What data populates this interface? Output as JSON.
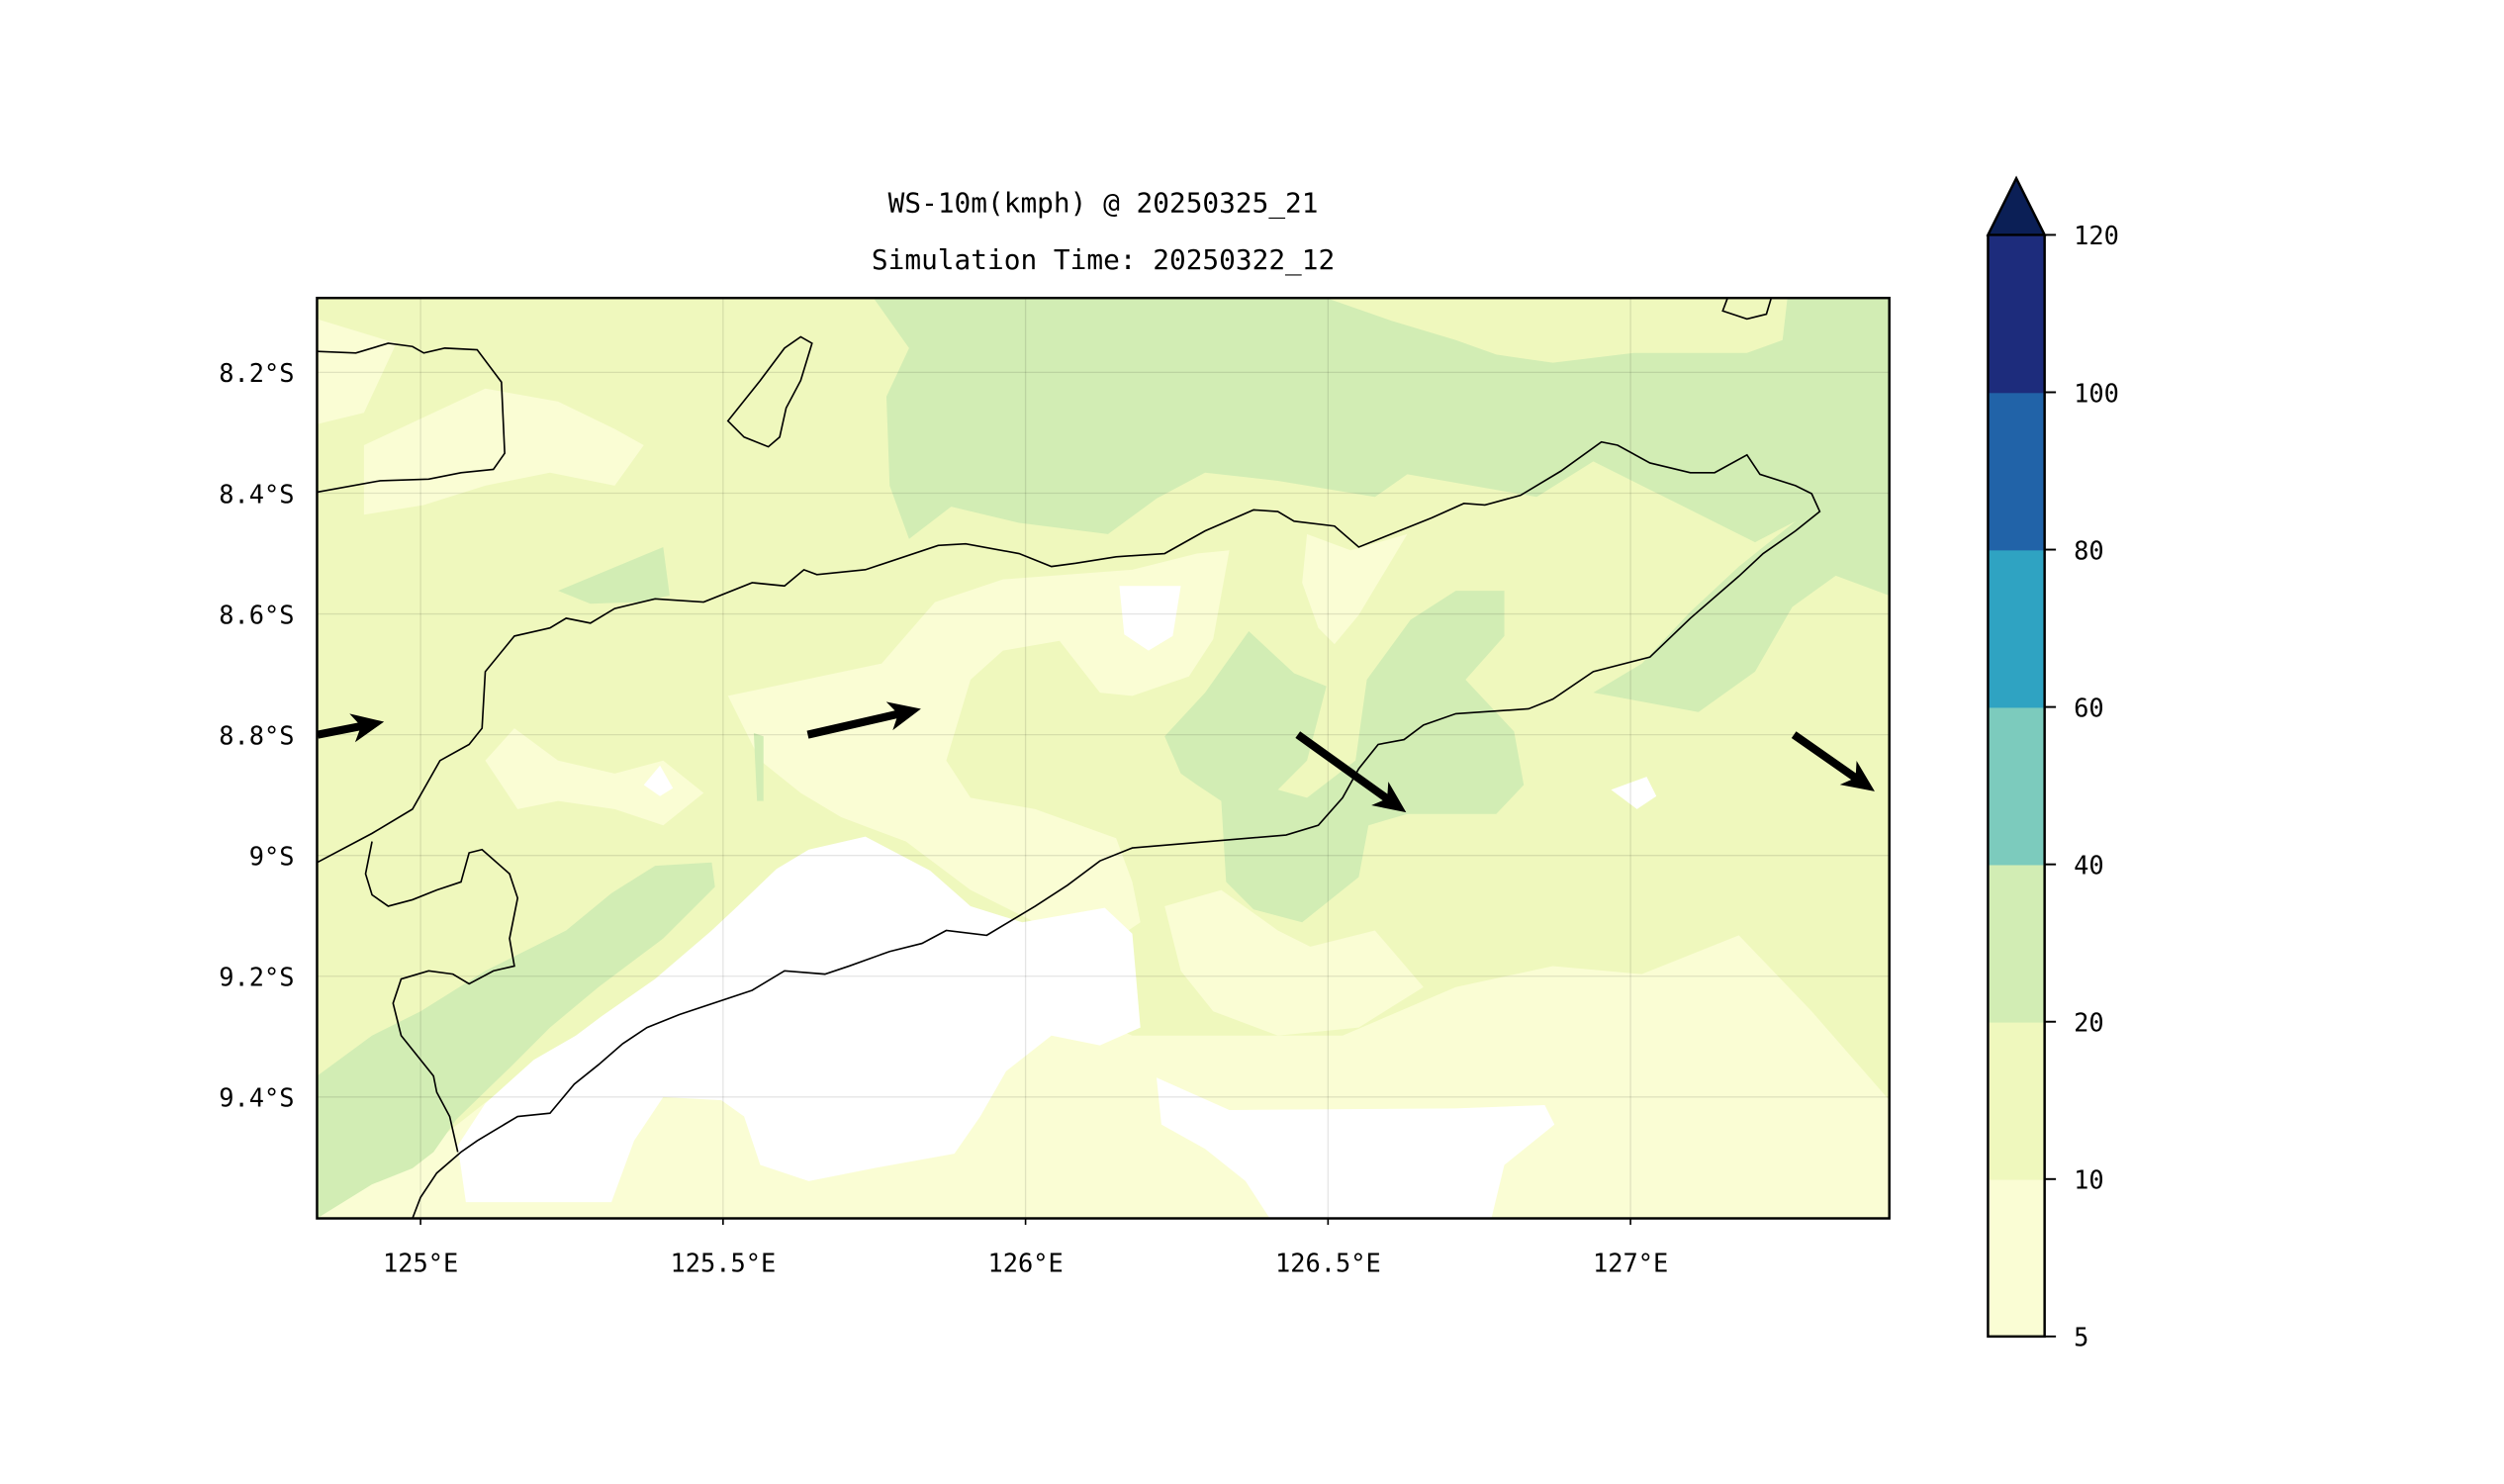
{
  "chart_data": {
    "type": "heatmap",
    "subtype": "filled-contour map with wind vectors",
    "title": "WS-10m(kmph) @ 20250325_21",
    "subtitle": "Simulation Time: 20250322_12",
    "xlabel": "",
    "ylabel": "",
    "xlim": [
      124.83,
      127.43
    ],
    "ylim_south_deg": [
      8.08,
      9.6
    ],
    "x_ticks": [
      {
        "value": 125.0,
        "label": "125°E"
      },
      {
        "value": 125.5,
        "label": "125.5°E"
      },
      {
        "value": 126.0,
        "label": "126°E"
      },
      {
        "value": 126.5,
        "label": "126.5°E"
      },
      {
        "value": 127.0,
        "label": "127°E"
      }
    ],
    "y_ticks": [
      {
        "value": 8.2,
        "label": "8.2°S"
      },
      {
        "value": 8.4,
        "label": "8.4°S"
      },
      {
        "value": 8.6,
        "label": "8.6°S"
      },
      {
        "value": 8.8,
        "label": "8.8°S"
      },
      {
        "value": 9.0,
        "label": "9°S"
      },
      {
        "value": 9.2,
        "label": "9.2°S"
      },
      {
        "value": 9.4,
        "label": "9.4°S"
      }
    ],
    "grid": true,
    "colorbar": {
      "placement": "right",
      "extend": "max",
      "levels": [
        {
          "label": "5",
          "value": 5
        },
        {
          "label": "10",
          "value": 10
        },
        {
          "label": "20",
          "value": 20
        },
        {
          "label": "40",
          "value": 40
        },
        {
          "label": "60",
          "value": 60
        },
        {
          "label": "80",
          "value": 80
        },
        {
          "label": "100",
          "value": 100
        },
        {
          "label": "120",
          "value": 120
        }
      ],
      "colors": [
        "#fafdd4",
        "#eff8bd",
        "#d2edb4",
        "#7ccbbd",
        "#2fa3c2",
        "#2163a8",
        "#1d2c7c"
      ],
      "extend_color": "#0b1f56"
    },
    "below_min_color": "#ffffff",
    "wind_vectors": [
      {
        "lon": 124.83,
        "lat": -8.8,
        "u": 4.1,
        "v": 0.8
      },
      {
        "lon": 125.64,
        "lat": -8.8,
        "u": 7.0,
        "v": 1.6
      },
      {
        "lon": 126.45,
        "lat": -8.8,
        "u": 6.7,
        "v": -4.8
      },
      {
        "lon": 127.27,
        "lat": -8.8,
        "u": 5.0,
        "v": -3.5
      }
    ]
  }
}
